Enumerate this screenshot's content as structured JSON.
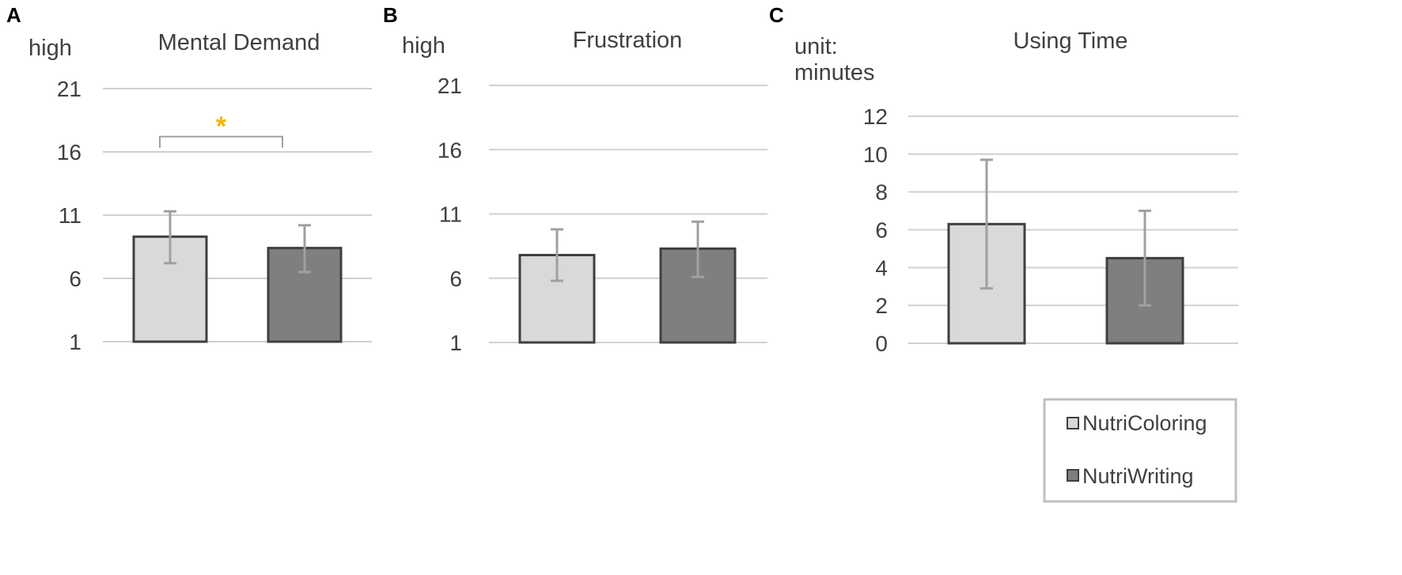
{
  "panel_letters": [
    "A",
    "B",
    "C"
  ],
  "colors": {
    "NutriColoring": "#d9d9d9",
    "NutriWriting": "#7f7f7f",
    "bar_border": "#3f3f3f",
    "error_bar": "#a0a0a0",
    "significance": "#f2b400",
    "bracket": "#a0a0a0"
  },
  "legend": {
    "position": "bottom-right",
    "entries": [
      "NutriColoring",
      "NutriWriting"
    ]
  },
  "chart_data": [
    {
      "type": "bar",
      "panel": "A",
      "title": "Mental Demand",
      "ylabel": "high",
      "ylim": [
        1,
        21
      ],
      "yticks": [
        1,
        6,
        11,
        16,
        21
      ],
      "grid": true,
      "categories": [
        "NutriColoring",
        "NutriWriting"
      ],
      "series": [
        {
          "name": "NutriColoring",
          "value": 9.3,
          "error": [
            7.2,
            11.3
          ]
        },
        {
          "name": "NutriWriting",
          "value": 8.4,
          "error": [
            6.5,
            10.2
          ]
        }
      ],
      "significance": {
        "label": "*",
        "between": [
          "NutriColoring",
          "NutriWriting"
        ],
        "bracket_y": 17.2
      }
    },
    {
      "type": "bar",
      "panel": "B",
      "title": "Frustration",
      "ylabel": "high",
      "ylim": [
        1,
        21
      ],
      "yticks": [
        1,
        6,
        11,
        16,
        21
      ],
      "grid": true,
      "categories": [
        "NutriColoring",
        "NutriWriting"
      ],
      "series": [
        {
          "name": "NutriColoring",
          "value": 7.8,
          "error": [
            5.8,
            9.8
          ]
        },
        {
          "name": "NutriWriting",
          "value": 8.3,
          "error": [
            6.1,
            10.4
          ]
        }
      ]
    },
    {
      "type": "bar",
      "panel": "C",
      "title": "Using Time",
      "ylabel": "unit: minutes",
      "ylabel_lines": [
        "unit:",
        "minutes"
      ],
      "ylim": [
        0,
        12
      ],
      "yticks": [
        0,
        2,
        4,
        6,
        8,
        10,
        12
      ],
      "grid": true,
      "categories": [
        "NutriColoring",
        "NutriWriting"
      ],
      "series": [
        {
          "name": "NutriColoring",
          "value": 6.3,
          "error": [
            2.9,
            9.7
          ]
        },
        {
          "name": "NutriWriting",
          "value": 4.5,
          "error": [
            2.0,
            7.0
          ]
        }
      ]
    }
  ]
}
